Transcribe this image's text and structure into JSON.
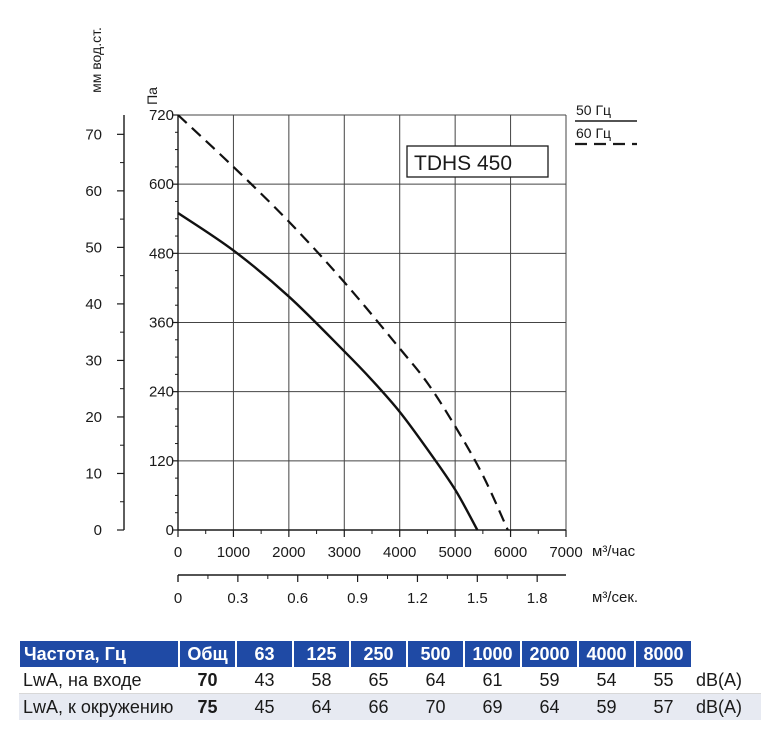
{
  "chart_data": {
    "type": "line",
    "model_label": "TDHS 450",
    "x_unit_primary": "м³/час",
    "x_unit_secondary": "м³/сек.",
    "y_unit_left": "мм вод.ст.",
    "y_unit_right": "Па",
    "xlim": [
      0,
      7000
    ],
    "ylim": [
      0,
      720
    ],
    "x_ticks": [
      "0",
      "1000",
      "2000",
      "3000",
      "4000",
      "5000",
      "6000",
      "7000"
    ],
    "x2_ticks": [
      "0",
      "0.3",
      "0.6",
      "0.9",
      "1.2",
      "1.5",
      "1.8"
    ],
    "y_ticks_pa": [
      "0",
      "120",
      "240",
      "360",
      "480",
      "600",
      "720"
    ],
    "y_ticks_mm": [
      "0",
      "10",
      "20",
      "30",
      "40",
      "50",
      "60",
      "70"
    ],
    "series": [
      {
        "name": "50 Гц",
        "style": "solid",
        "x": [
          0,
          1000,
          2000,
          3000,
          3500,
          4000,
          4500,
          5000,
          5400
        ],
        "y": [
          550,
          485,
          405,
          310,
          260,
          205,
          140,
          70,
          0
        ]
      },
      {
        "name": "60 Гц",
        "style": "dashed",
        "x": [
          0,
          1000,
          2000,
          3000,
          4000,
          4500,
          5000,
          5500,
          5950
        ],
        "y": [
          720,
          630,
          535,
          430,
          315,
          255,
          180,
          95,
          0
        ]
      }
    ]
  },
  "table": {
    "header": [
      "Частота, Гц",
      "Общ",
      "63",
      "125",
      "250",
      "500",
      "1000",
      "2000",
      "4000",
      "8000"
    ],
    "rows": [
      {
        "label": "LwA, на входе",
        "total": "70",
        "values": [
          "43",
          "58",
          "65",
          "64",
          "61",
          "59",
          "54",
          "55"
        ],
        "unit": "dB(A)"
      },
      {
        "label": "LwA, к окружению",
        "total": "75",
        "values": [
          "45",
          "64",
          "66",
          "70",
          "69",
          "64",
          "59",
          "57"
        ],
        "unit": "dB(A)"
      }
    ]
  }
}
